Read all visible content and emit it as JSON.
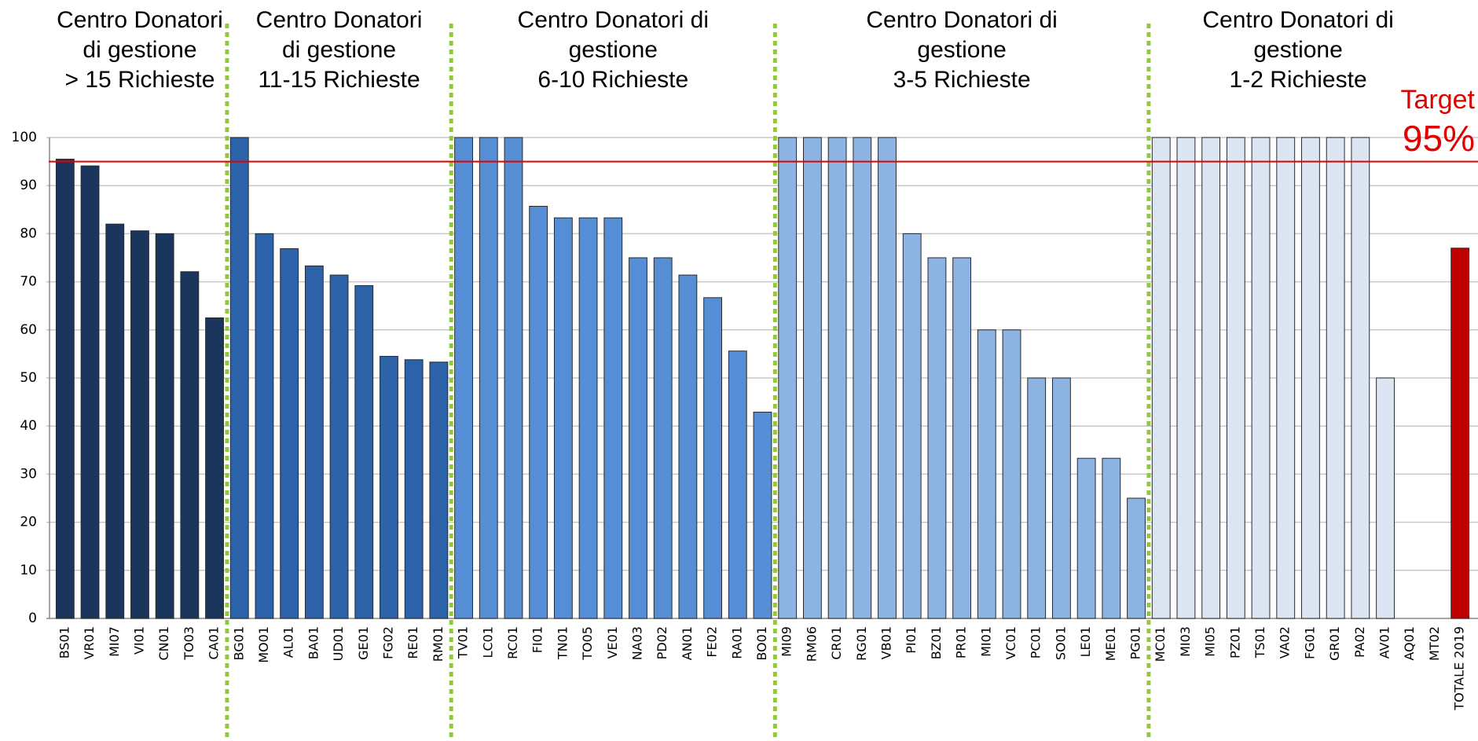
{
  "chart_data": {
    "type": "bar",
    "groups": [
      {
        "lines": [
          "Centro Donatori",
          "di gestione",
          "> 15 Richieste"
        ],
        "color": "#1b365d",
        "categories": [
          "BS01",
          "VR01",
          "MI07",
          "VI01",
          "CN01",
          "TO03",
          "CA01"
        ],
        "values": [
          95.5,
          94.1,
          82,
          80.6,
          80,
          72.1,
          62.5
        ]
      },
      {
        "lines": [
          "Centro Donatori",
          "di gestione",
          "11-15 Richieste"
        ],
        "color": "#2b62a8",
        "categories": [
          "BG01",
          "MO01",
          "AL01",
          "BA01",
          "UD01",
          "GE01",
          "FG02",
          "RE01",
          "RM01"
        ],
        "values": [
          100,
          80,
          76.9,
          73.3,
          71.4,
          69.2,
          54.5,
          53.8,
          53.3
        ]
      },
      {
        "lines": [
          "Centro Donatori di",
          "gestione",
          "6-10 Richieste"
        ],
        "color": "#558ed5",
        "categories": [
          "TV01",
          "LC01",
          "RC01",
          "FI01",
          "TN01",
          "TO05",
          "VE01",
          "NA03",
          "PD02",
          "AN01",
          "FE02",
          "RA01",
          "BO01"
        ],
        "values": [
          100,
          100,
          100,
          85.7,
          83.3,
          83.3,
          83.3,
          75,
          75,
          71.4,
          66.7,
          55.6,
          42.9
        ]
      },
      {
        "lines": [
          "Centro Donatori di",
          "gestione",
          "3-5 Richieste"
        ],
        "color": "#8db3e2",
        "categories": [
          "MI09",
          "RM06",
          "CR01",
          "RG01",
          "VB01",
          "PI01",
          "BZ01",
          "PR01",
          "MI01",
          "VC01",
          "PC01",
          "SO01",
          "LE01",
          "ME01",
          "PG01"
        ],
        "values": [
          100,
          100,
          100,
          100,
          100,
          80,
          75,
          75,
          60,
          60,
          50,
          50,
          33.3,
          33.3,
          25
        ]
      },
      {
        "lines": [
          "Centro Donatori di",
          "gestione",
          "1-2 Richieste"
        ],
        "color": "#dce6f2",
        "categories": [
          "MC01",
          "MI03",
          "MI05",
          "PZ01",
          "TS01",
          "VA02",
          "FG01",
          "GR01",
          "PA02",
          "AV01",
          "AQ01",
          "MT02"
        ],
        "values": [
          100,
          100,
          100,
          100,
          100,
          100,
          100,
          100,
          100,
          50,
          null,
          null
        ]
      },
      {
        "lines": [],
        "color": "#c00000",
        "categories": [
          "TOTALE 2019"
        ],
        "values": [
          77
        ]
      }
    ],
    "target": {
      "value": 95,
      "lines": [
        "Target",
        "95%"
      ],
      "color": "#e00000"
    },
    "separator_color": "#92c83e",
    "ylim": [
      0,
      100
    ],
    "yticks": [
      0,
      10,
      20,
      30,
      40,
      50,
      60,
      70,
      80,
      90,
      100
    ],
    "grid": true
  }
}
